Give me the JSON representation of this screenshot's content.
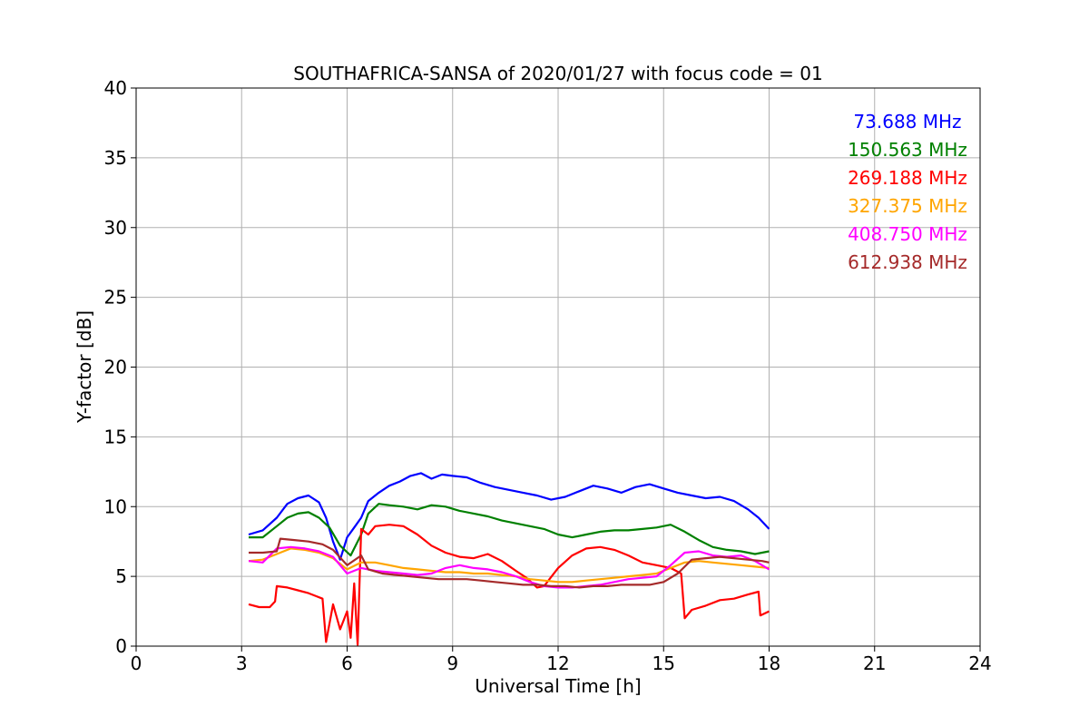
{
  "chart_data": {
    "type": "line",
    "title": "SOUTHAFRICA-SANSA of 2020/01/27 with focus code = 01",
    "xlabel": "Universal Time [h]",
    "ylabel": "Y-factor [dB]",
    "xlim": [
      0,
      24
    ],
    "ylim": [
      0,
      40
    ],
    "xticks": [
      0,
      3,
      6,
      9,
      12,
      15,
      18,
      21,
      24
    ],
    "yticks": [
      0,
      5,
      10,
      15,
      20,
      25,
      30,
      35,
      40
    ],
    "grid": true,
    "legend_position": "top-right",
    "series": [
      {
        "name": "73.688 MHz",
        "color": "#0000ff",
        "x": [
          3.2,
          3.6,
          4.0,
          4.3,
          4.6,
          4.9,
          5.2,
          5.4,
          5.6,
          5.8,
          6.0,
          6.2,
          6.4,
          6.6,
          6.9,
          7.2,
          7.5,
          7.8,
          8.1,
          8.4,
          8.7,
          9.0,
          9.4,
          9.8,
          10.2,
          10.6,
          11.0,
          11.4,
          11.8,
          12.2,
          12.6,
          13.0,
          13.4,
          13.8,
          14.2,
          14.6,
          15.0,
          15.4,
          15.8,
          16.2,
          16.6,
          17.0,
          17.4,
          17.7,
          18.0
        ],
        "y": [
          8.0,
          8.3,
          9.2,
          10.2,
          10.6,
          10.8,
          10.3,
          9.2,
          7.5,
          6.2,
          7.8,
          8.5,
          9.2,
          10.4,
          11.0,
          11.5,
          11.8,
          12.2,
          12.4,
          12.0,
          12.3,
          12.2,
          12.1,
          11.7,
          11.4,
          11.2,
          11.0,
          10.8,
          10.5,
          10.7,
          11.1,
          11.5,
          11.3,
          11.0,
          11.4,
          11.6,
          11.3,
          11.0,
          10.8,
          10.6,
          10.7,
          10.4,
          9.8,
          9.2,
          8.4
        ]
      },
      {
        "name": "150.563 MHz",
        "color": "#008000",
        "x": [
          3.2,
          3.6,
          4.0,
          4.3,
          4.6,
          4.9,
          5.2,
          5.5,
          5.8,
          6.1,
          6.4,
          6.6,
          6.9,
          7.2,
          7.6,
          8.0,
          8.4,
          8.8,
          9.2,
          9.6,
          10.0,
          10.4,
          10.8,
          11.2,
          11.6,
          12.0,
          12.4,
          12.8,
          13.2,
          13.6,
          14.0,
          14.4,
          14.8,
          15.2,
          15.6,
          16.0,
          16.4,
          16.8,
          17.2,
          17.6,
          18.0
        ],
        "y": [
          7.8,
          7.8,
          8.6,
          9.2,
          9.5,
          9.6,
          9.2,
          8.5,
          7.2,
          6.5,
          8.0,
          9.5,
          10.2,
          10.1,
          10.0,
          9.8,
          10.1,
          10.0,
          9.7,
          9.5,
          9.3,
          9.0,
          8.8,
          8.6,
          8.4,
          8.0,
          7.8,
          8.0,
          8.2,
          8.3,
          8.3,
          8.4,
          8.5,
          8.7,
          8.2,
          7.6,
          7.1,
          6.9,
          6.8,
          6.6,
          6.8
        ]
      },
      {
        "name": "269.188 MHz",
        "color": "#ff0000",
        "x": [
          3.2,
          3.5,
          3.8,
          3.95,
          4.0,
          4.3,
          4.6,
          4.9,
          5.1,
          5.3,
          5.4,
          5.6,
          5.8,
          6.0,
          6.1,
          6.2,
          6.3,
          6.4,
          6.6,
          6.8,
          7.2,
          7.6,
          8.0,
          8.4,
          8.8,
          9.2,
          9.6,
          10.0,
          10.4,
          10.8,
          11.1,
          11.4,
          11.6,
          12.0,
          12.4,
          12.8,
          13.2,
          13.6,
          14.0,
          14.4,
          14.8,
          15.2,
          15.5,
          15.6,
          15.8,
          16.2,
          16.6,
          17.0,
          17.4,
          17.7,
          17.75,
          18.0
        ],
        "y": [
          3.0,
          2.8,
          2.8,
          3.2,
          4.3,
          4.2,
          4.0,
          3.8,
          3.6,
          3.4,
          0.3,
          3.0,
          1.2,
          2.5,
          0.6,
          4.5,
          0.1,
          8.4,
          8.0,
          8.6,
          8.7,
          8.6,
          8.0,
          7.2,
          6.7,
          6.4,
          6.3,
          6.6,
          6.1,
          5.4,
          4.9,
          4.2,
          4.3,
          5.6,
          6.5,
          7.0,
          7.1,
          6.9,
          6.5,
          6.0,
          5.8,
          5.6,
          5.2,
          2.0,
          2.6,
          2.9,
          3.3,
          3.4,
          3.7,
          3.9,
          2.2,
          2.5
        ]
      },
      {
        "name": "327.375 MHz",
        "color": "#ffa500",
        "x": [
          3.2,
          3.6,
          4.0,
          4.4,
          4.8,
          5.2,
          5.6,
          6.0,
          6.4,
          6.8,
          7.2,
          7.6,
          8.0,
          8.4,
          8.8,
          9.2,
          9.6,
          10.0,
          10.4,
          10.8,
          11.2,
          11.6,
          12.0,
          12.4,
          12.8,
          13.2,
          13.6,
          14.0,
          14.4,
          14.8,
          15.2,
          15.6,
          16.0,
          16.4,
          16.8,
          17.2,
          17.6,
          18.0
        ],
        "y": [
          6.1,
          6.2,
          6.6,
          7.0,
          6.9,
          6.7,
          6.3,
          5.5,
          6.0,
          6.0,
          5.8,
          5.6,
          5.5,
          5.4,
          5.3,
          5.3,
          5.2,
          5.2,
          5.1,
          5.0,
          4.8,
          4.7,
          4.6,
          4.6,
          4.7,
          4.8,
          4.9,
          5.0,
          5.1,
          5.2,
          5.6,
          6.0,
          6.1,
          6.0,
          5.9,
          5.8,
          5.7,
          5.6
        ]
      },
      {
        "name": "408.750 MHz",
        "color": "#ff00ff",
        "x": [
          3.2,
          3.6,
          4.0,
          4.4,
          4.8,
          5.2,
          5.6,
          6.0,
          6.4,
          6.8,
          7.2,
          7.6,
          8.0,
          8.4,
          8.8,
          9.2,
          9.6,
          10.0,
          10.4,
          10.8,
          11.2,
          11.6,
          12.0,
          12.4,
          12.8,
          13.2,
          13.6,
          14.0,
          14.4,
          14.8,
          15.2,
          15.6,
          16.0,
          16.4,
          16.8,
          17.2,
          17.6,
          18.0
        ],
        "y": [
          6.1,
          6.0,
          7.0,
          7.1,
          7.0,
          6.8,
          6.4,
          5.2,
          5.6,
          5.4,
          5.3,
          5.2,
          5.1,
          5.2,
          5.6,
          5.8,
          5.6,
          5.5,
          5.3,
          5.0,
          4.6,
          4.3,
          4.2,
          4.2,
          4.3,
          4.4,
          4.6,
          4.8,
          4.9,
          5.0,
          5.8,
          6.7,
          6.8,
          6.5,
          6.4,
          6.5,
          6.1,
          5.5
        ]
      },
      {
        "name": "612.938 MHz",
        "color": "#a52a2a",
        "x": [
          3.2,
          3.6,
          4.0,
          4.1,
          4.5,
          4.9,
          5.3,
          5.6,
          6.0,
          6.4,
          6.6,
          7.0,
          7.4,
          7.8,
          8.2,
          8.6,
          9.0,
          9.4,
          9.8,
          10.2,
          10.6,
          11.0,
          11.4,
          11.8,
          12.2,
          12.6,
          13.0,
          13.4,
          13.8,
          14.2,
          14.6,
          15.0,
          15.4,
          15.8,
          16.2,
          16.6,
          17.0,
          17.4,
          17.8,
          18.0
        ],
        "y": [
          6.7,
          6.7,
          6.8,
          7.7,
          7.6,
          7.5,
          7.3,
          6.9,
          5.8,
          6.5,
          5.5,
          5.2,
          5.1,
          5.0,
          4.9,
          4.8,
          4.8,
          4.8,
          4.7,
          4.6,
          4.5,
          4.4,
          4.4,
          4.3,
          4.3,
          4.2,
          4.3,
          4.3,
          4.4,
          4.4,
          4.4,
          4.6,
          5.2,
          6.2,
          6.3,
          6.4,
          6.3,
          6.2,
          6.1,
          6.0
        ]
      }
    ]
  }
}
